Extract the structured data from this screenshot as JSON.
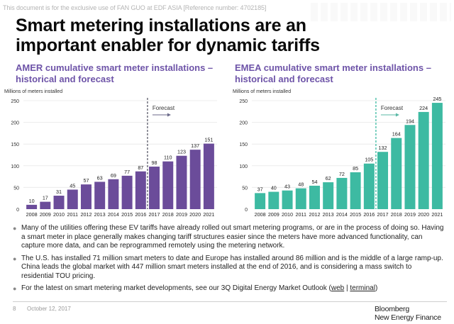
{
  "watermark": "This document is for the exclusive use of FAN GUO at EDF ASIA [Reference number: 4702185]",
  "title_line1": "Smart metering installations are an",
  "title_line2": "important enabler for dynamic tariffs",
  "colors": {
    "amer_bar": "#6b4c9a",
    "emea_bar": "#3dbaa2",
    "subtitle": "#6e54a8",
    "grid": "#ececec"
  },
  "chart_data": [
    {
      "type": "bar",
      "title": "AMER cumulative smart meter installations – historical and forecast",
      "title_line1": "AMER cumulative smart meter installations –",
      "title_line2": "historical and forecast",
      "ylabel": "Millions of meters installed",
      "xlabel": "",
      "ylim": [
        0,
        250
      ],
      "yticks": [
        0,
        50,
        100,
        150,
        200,
        250
      ],
      "grid": true,
      "categories": [
        "2008",
        "2009",
        "2010",
        "2011",
        "2012",
        "2013",
        "2014",
        "2015",
        "2016",
        "2017",
        "2018",
        "2019",
        "2020",
        "2021"
      ],
      "values": [
        10,
        17,
        31,
        45,
        57,
        63,
        69,
        77,
        87,
        98,
        110,
        123,
        137,
        151
      ],
      "forecast_label": "Forecast",
      "forecast_starts": "2017"
    },
    {
      "type": "bar",
      "title": "EMEA cumulative smart meter installations – historical and forecast",
      "title_line1": "EMEA cumulative smart meter installations –",
      "title_line2": "historical and forecast",
      "ylabel": "Millions of meters installed",
      "xlabel": "",
      "ylim": [
        0,
        250
      ],
      "yticks": [
        0,
        50,
        100,
        150,
        200,
        250
      ],
      "grid": true,
      "categories": [
        "2008",
        "2009",
        "2010",
        "2011",
        "2012",
        "2013",
        "2014",
        "2015",
        "2016",
        "2017",
        "2018",
        "2019",
        "2020",
        "2021"
      ],
      "values": [
        37,
        40,
        43,
        48,
        54,
        62,
        72,
        85,
        105,
        132,
        164,
        194,
        224,
        245
      ],
      "forecast_label": "Forecast",
      "forecast_starts": "2017"
    }
  ],
  "bullets": [
    {
      "text": "Many of the utilities offering these EV tariffs have already rolled out smart metering programs, or are in the process of doing so. Having a smart meter in place generally makes changing tariff structures easier since the meters have more advanced functionality, can capture more data, and can be reprogrammed remotely using the metering network."
    },
    {
      "text": "The U.S. has installed 71 million smart meters to date and Europe has installed around 86 million and is the middle of a large ramp-up. China leads the global market with 447 million smart meters installed at the end of 2016, and is considering a mass switch to residential TOU pricing."
    },
    {
      "text_before": "For the latest on smart metering market developments, see our 3Q Digital Energy Market Outlook (",
      "link_web": "web",
      "separator": " | ",
      "link_terminal": "terminal",
      "text_after": ")"
    }
  ],
  "footer": {
    "page_number": "8",
    "date": "October 12, 2017",
    "logo_line1": "Bloomberg",
    "logo_line2": "New Energy Finance"
  }
}
